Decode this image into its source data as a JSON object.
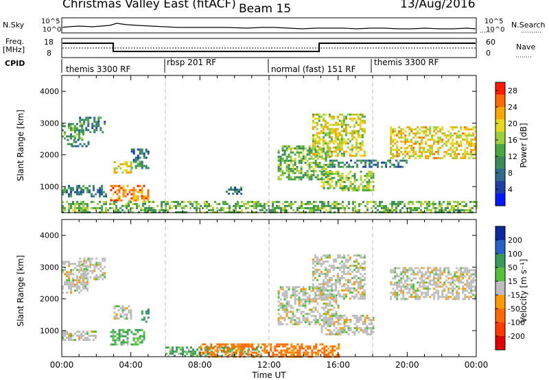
{
  "header": {
    "title": "Christmas Valley East (fitACF)",
    "beam": "Beam 15",
    "date": "13/Aug/2016"
  },
  "top_panels": {
    "nsky_label": "N.Sky",
    "nsky_ticks": [
      "10^5",
      "10^0"
    ],
    "nsearch_label": "N.Search",
    "nsearch_ticks": [
      "10^5",
      "10^0"
    ],
    "freq_label": "Freq.",
    "freq_unit": "[MHz]",
    "freq_ticks": [
      "18",
      "8"
    ],
    "nave_label": "Nave",
    "nave_ticks": [
      "60",
      "0"
    ],
    "cpid_label": "CPID"
  },
  "cpid_segments": [
    {
      "label": "themis 3300 RF",
      "start_h": 0
    },
    {
      "label": "rbsp 201 RF",
      "start_h": 6
    },
    {
      "label": "normal (fast) 151 RF",
      "start_h": 12
    },
    {
      "label": "themis 3300 RF",
      "start_h": 18
    }
  ],
  "chart_data": [
    {
      "type": "heatmap",
      "panel": "power",
      "xlabel": "Time UT",
      "ylabel": "Slant Range [km]",
      "xlim_hours": [
        0,
        24
      ],
      "ylim_km": [
        180,
        4500
      ],
      "y_ticks": [
        1000,
        2000,
        3000,
        4000
      ],
      "colorbar": {
        "label": "Power [dB]",
        "ticks": [
          4,
          8,
          12,
          16,
          20,
          24,
          28
        ],
        "range": [
          0,
          30
        ],
        "colors": [
          "#0018ff",
          "#1f3fa8",
          "#2e6a8c",
          "#3a8c5a",
          "#4aa840",
          "#9ccf3a",
          "#e8d820",
          "#f5a800",
          "#ff6a00",
          "#ff1a00"
        ]
      },
      "echo_regions": [
        {
          "t": [
            0.0,
            1.2
          ],
          "r": [
            2500,
            3000
          ],
          "level": 12
        },
        {
          "t": [
            1.0,
            2.5
          ],
          "r": [
            2700,
            3200
          ],
          "level": 10
        },
        {
          "t": [
            0.3,
            1.5
          ],
          "r": [
            2250,
            2500
          ],
          "level": 10
        },
        {
          "t": [
            0.0,
            2.6
          ],
          "r": [
            700,
            1050
          ],
          "level": 9
        },
        {
          "t": [
            3.0,
            4.0
          ],
          "r": [
            1450,
            1800
          ],
          "level": 20
        },
        {
          "t": [
            2.8,
            5.0
          ],
          "r": [
            550,
            1050
          ],
          "level": 24
        },
        {
          "t": [
            4.0,
            5.0
          ],
          "r": [
            1600,
            2200
          ],
          "level": 9
        },
        {
          "t": [
            9.5,
            10.5
          ],
          "r": [
            750,
            1000
          ],
          "level": 8
        },
        {
          "t": [
            0.0,
            24.0
          ],
          "r": [
            180,
            550
          ],
          "level": 14
        },
        {
          "t": [
            12.5,
            15.5
          ],
          "r": [
            1200,
            2300
          ],
          "level": 14
        },
        {
          "t": [
            14.5,
            17.5
          ],
          "r": [
            2000,
            3300
          ],
          "level": 18
        },
        {
          "t": [
            15.0,
            18.0
          ],
          "r": [
            900,
            1500
          ],
          "level": 16
        },
        {
          "t": [
            15.5,
            20.0
          ],
          "r": [
            1650,
            1850
          ],
          "level": 10
        },
        {
          "t": [
            19.0,
            24.0
          ],
          "r": [
            1900,
            2900
          ],
          "level": 20
        }
      ]
    },
    {
      "type": "heatmap",
      "panel": "velocity",
      "xlabel": "Time UT",
      "ylabel": "Slant Range [km]",
      "xlim_hours": [
        0,
        24
      ],
      "ylim_km": [
        180,
        4500
      ],
      "y_ticks": [
        1000,
        2000,
        3000,
        4000
      ],
      "x_tick_labels": [
        "00:00",
        "04:00",
        "08:00",
        "12:00",
        "16:00",
        "20:00",
        "00:00"
      ],
      "colorbar": {
        "label": "Velocity [m s⁻¹]",
        "ticks": [
          200,
          100,
          50,
          15,
          -15,
          -50,
          -100,
          -200
        ],
        "colors": [
          "#0a2a9c",
          "#2864c8",
          "#3a9a5c",
          "#52c03c",
          "#bdbdbd",
          "#ff9a00",
          "#ff6a00",
          "#ff3a00",
          "#e00000"
        ]
      },
      "echo_regions": [
        {
          "t": [
            0.0,
            1.5
          ],
          "r": [
            2200,
            3200
          ],
          "v": 0
        },
        {
          "t": [
            1.0,
            2.5
          ],
          "r": [
            2600,
            3300
          ],
          "v": 0
        },
        {
          "t": [
            0.0,
            2.0
          ],
          "r": [
            700,
            1000
          ],
          "v": 0
        },
        {
          "t": [
            2.8,
            4.8
          ],
          "r": [
            550,
            1050
          ],
          "v": 30
        },
        {
          "t": [
            3.0,
            4.0
          ],
          "r": [
            1400,
            1800
          ],
          "v": 0
        },
        {
          "t": [
            4.6,
            5.0
          ],
          "r": [
            1300,
            1700
          ],
          "v": 60
        },
        {
          "t": [
            6.0,
            11.5
          ],
          "r": [
            180,
            500
          ],
          "v": 30
        },
        {
          "t": [
            8.0,
            16.0
          ],
          "r": [
            180,
            600
          ],
          "v": -40
        },
        {
          "t": [
            12.5,
            16.0
          ],
          "r": [
            1200,
            2400
          ],
          "v": 0
        },
        {
          "t": [
            14.5,
            17.5
          ],
          "r": [
            2000,
            3400
          ],
          "v": 0
        },
        {
          "t": [
            15.0,
            18.0
          ],
          "r": [
            900,
            1500
          ],
          "v": 0
        },
        {
          "t": [
            19.0,
            24.0
          ],
          "r": [
            2000,
            3000
          ],
          "v": 0
        }
      ]
    }
  ]
}
